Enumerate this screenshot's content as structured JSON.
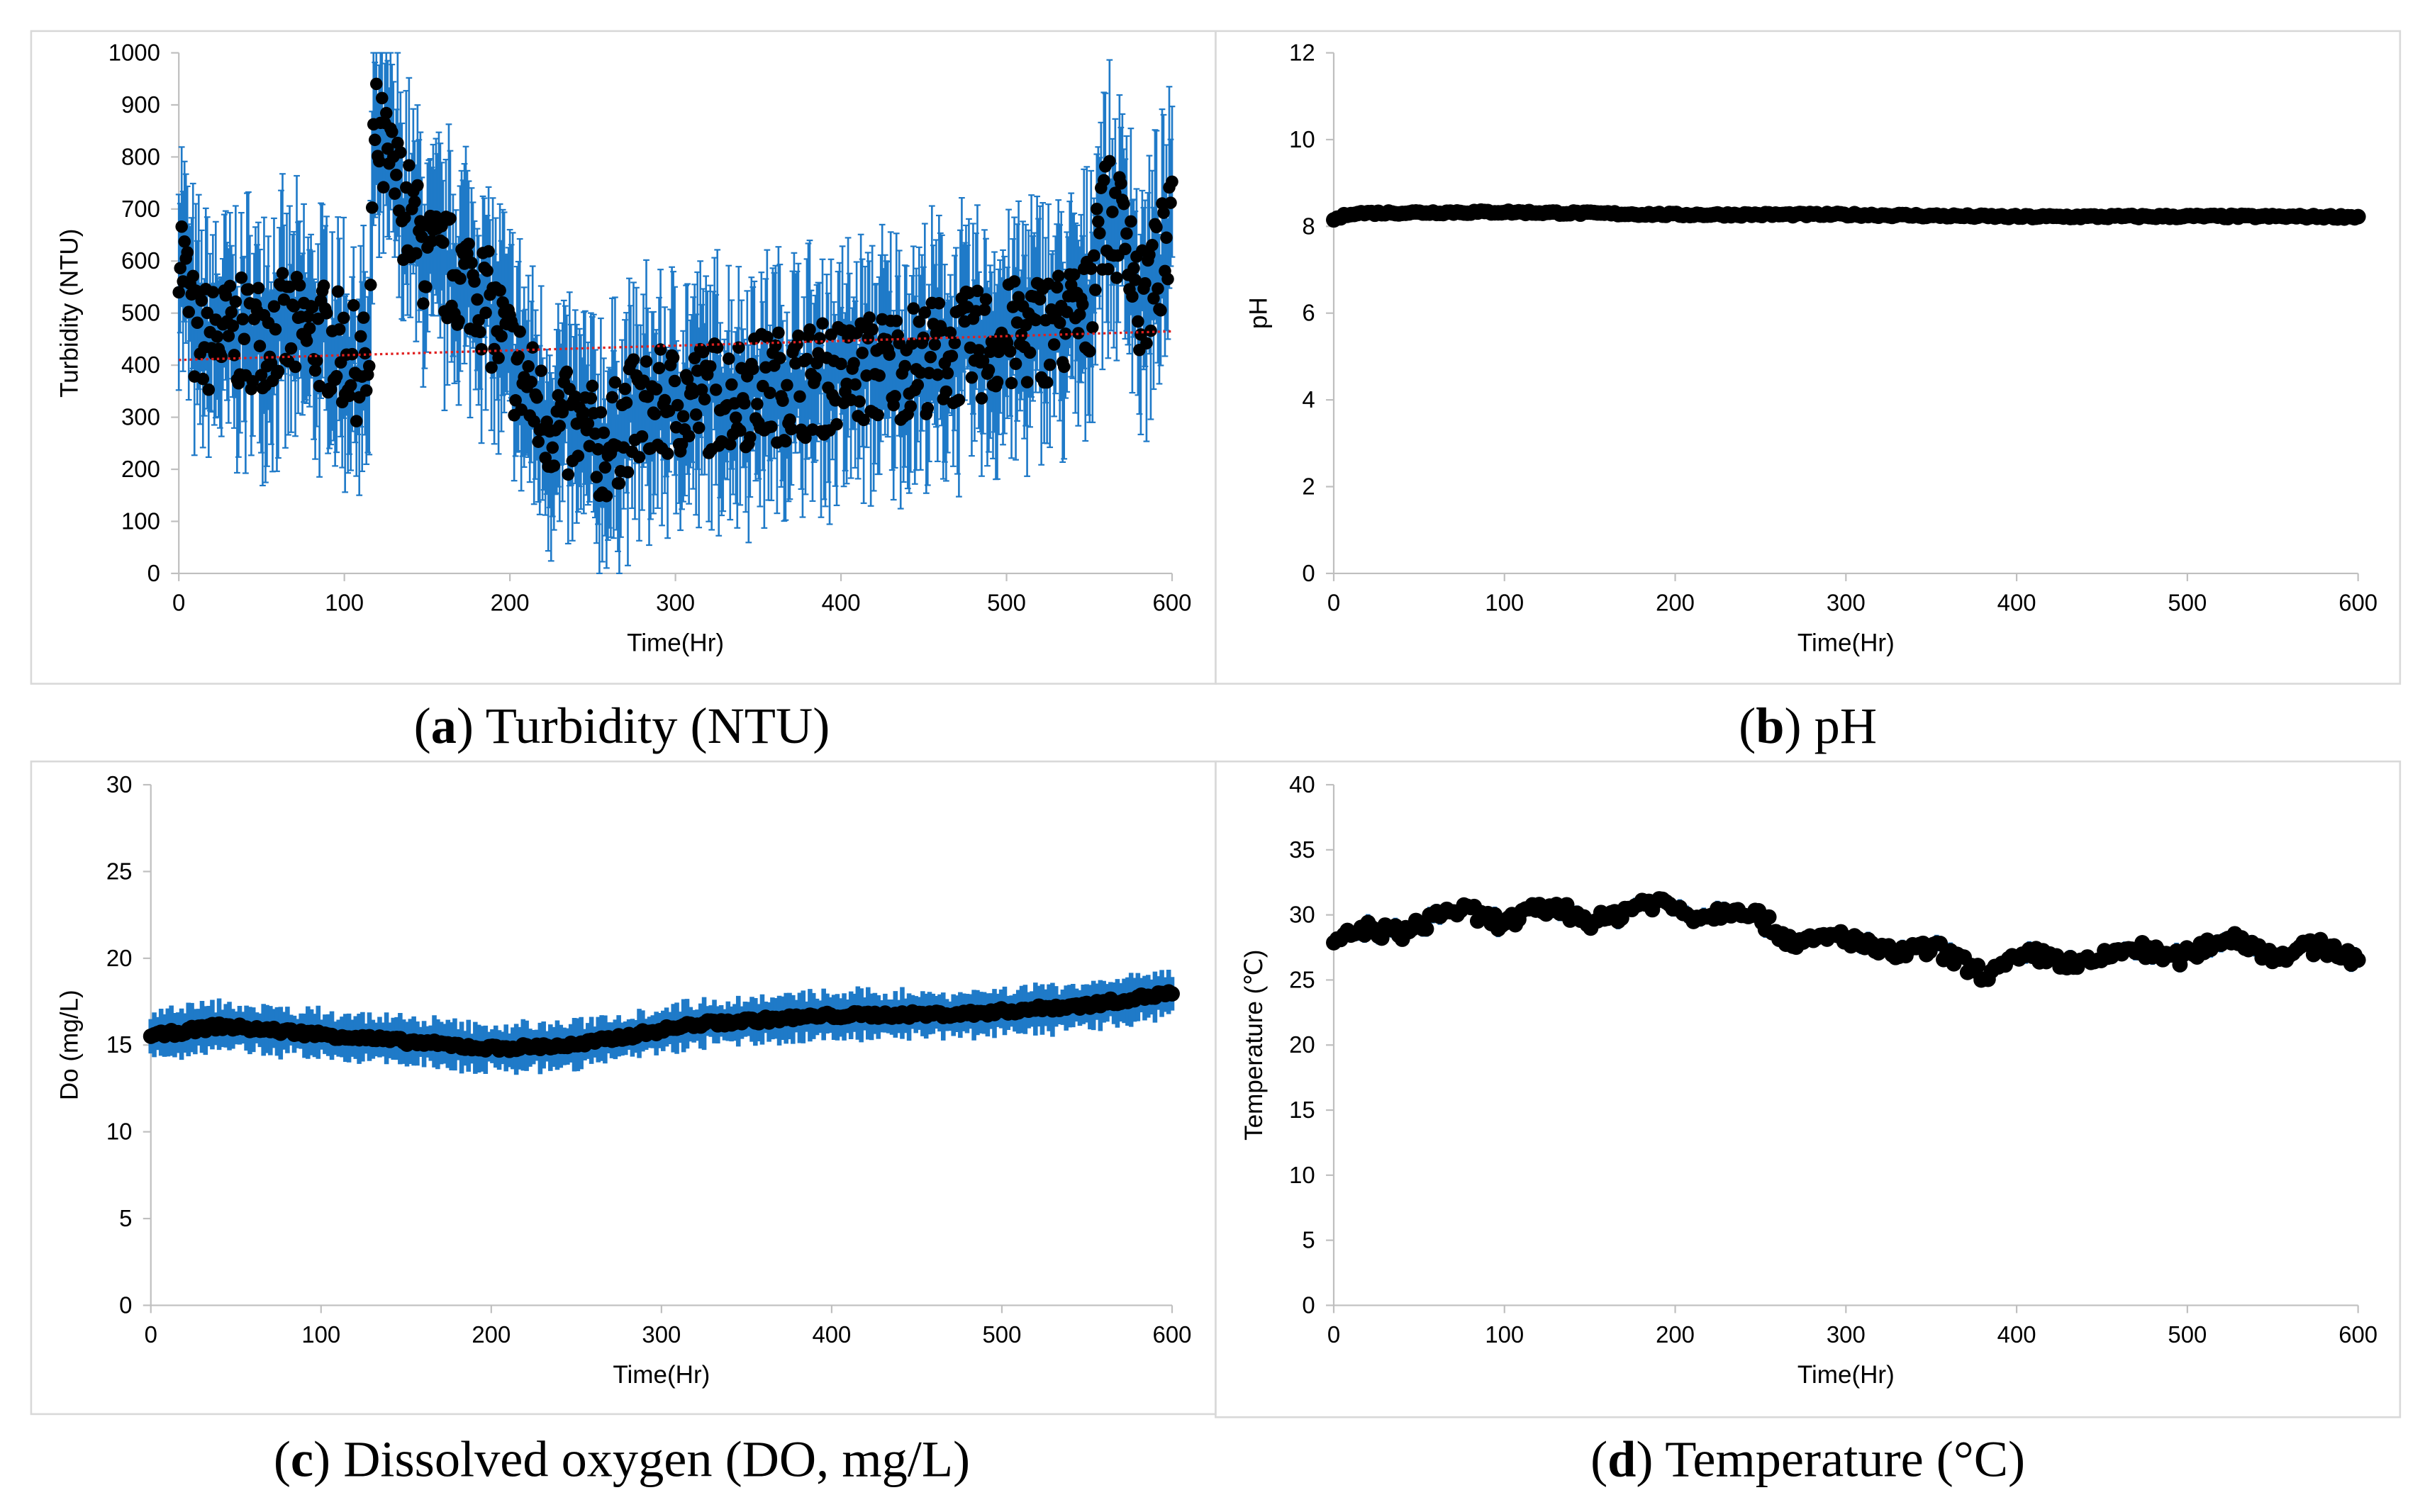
{
  "chart_data": [
    {
      "id": "a",
      "type": "scatter",
      "caption_letter": "a",
      "caption_text": ") Turbidity (NTU)",
      "caption_open": "(",
      "xlabel": "Time(Hr)",
      "ylabel": "Turbidity (NTU)",
      "xlim": [
        0,
        600
      ],
      "ylim": [
        0,
        1000
      ],
      "xticks": [
        0,
        100,
        200,
        300,
        400,
        500,
        600
      ],
      "yticks": [
        0,
        100,
        200,
        300,
        400,
        500,
        600,
        700,
        800,
        900,
        1000
      ],
      "series_trend": {
        "x": [
          0,
          10,
          20,
          60,
          90,
          115,
          118,
          150,
          180,
          200,
          220,
          260,
          270,
          300,
          400,
          500,
          550,
          555,
          575,
          580,
          600
        ],
        "y": [
          650,
          450,
          450,
          470,
          450,
          380,
          850,
          600,
          560,
          420,
          300,
          240,
          300,
          330,
          380,
          450,
          500,
          700,
          650,
          500,
          650
        ]
      },
      "error": 150,
      "noise": 110,
      "trendline": {
        "x": [
          0,
          600
        ],
        "y": [
          410,
          465
        ],
        "color": "#e02020",
        "style": "dotted"
      },
      "point_color": "#000000",
      "error_color": "#1f7ac8"
    },
    {
      "id": "b",
      "type": "scatter",
      "caption_letter": "b",
      "caption_text": ") pH",
      "caption_open": "(",
      "xlabel": "Time(Hr)",
      "ylabel": "pH",
      "xlim": [
        0,
        600
      ],
      "ylim": [
        0,
        12
      ],
      "xticks": [
        0,
        100,
        200,
        300,
        400,
        500,
        600
      ],
      "yticks": [
        0,
        2,
        4,
        6,
        8,
        10,
        12
      ],
      "series_trend": {
        "x": [
          0,
          10,
          50,
          100,
          200,
          300,
          400,
          500,
          600
        ],
        "y": [
          8.15,
          8.3,
          8.32,
          8.33,
          8.27,
          8.27,
          8.22,
          8.23,
          8.22
        ]
      },
      "error": 0,
      "noise": 0.03,
      "point_color": "#000000",
      "error_color": "#1f7ac8"
    },
    {
      "id": "c",
      "type": "scatter",
      "caption_letter": "c",
      "caption_text": ") Dissolved oxygen (DO, mg/L)",
      "caption_open": "(",
      "xlabel": "Time(Hr)",
      "ylabel": "Do (mg/L)",
      "xlim": [
        0,
        600
      ],
      "ylim": [
        0,
        30
      ],
      "xticks": [
        0,
        100,
        200,
        300,
        400,
        500,
        600
      ],
      "yticks": [
        0,
        5,
        10,
        15,
        20,
        25,
        30
      ],
      "series_trend": {
        "x": [
          0,
          40,
          150,
          200,
          250,
          320,
          400,
          480,
          550,
          600
        ],
        "y": [
          15.5,
          16.1,
          15.2,
          14.8,
          15.0,
          16.2,
          16.7,
          16.8,
          17.3,
          18.0
        ]
      },
      "error": 1.2,
      "noise": 0.15,
      "point_color": "#000000",
      "error_color": "#1f7ac8"
    },
    {
      "id": "d",
      "type": "scatter",
      "caption_letter": "d",
      "caption_text": ") Temperature (°C)",
      "caption_open": "(",
      "xlabel": "Time(Hr)",
      "ylabel": "Temperature (℃)",
      "xlim": [
        0,
        600
      ],
      "ylim": [
        0,
        40
      ],
      "xticks": [
        0,
        100,
        200,
        300,
        400,
        500,
        600
      ],
      "yticks": [
        0,
        5,
        10,
        15,
        20,
        25,
        30,
        35,
        40
      ],
      "series_trend": {
        "x": [
          0,
          20,
          60,
          100,
          150,
          200,
          240,
          280,
          330,
          380,
          420,
          480,
          530,
          580,
          600
        ],
        "y": [
          27.5,
          28.5,
          29.8,
          30.0,
          30.0,
          30.7,
          30.0,
          28.0,
          27.5,
          26.0,
          26.5,
          27.0,
          27.8,
          27.0,
          26.8
        ]
      },
      "error": 0.5,
      "noise": 0.6,
      "point_color": "#000000",
      "error_color": "#1f7ac8"
    }
  ]
}
